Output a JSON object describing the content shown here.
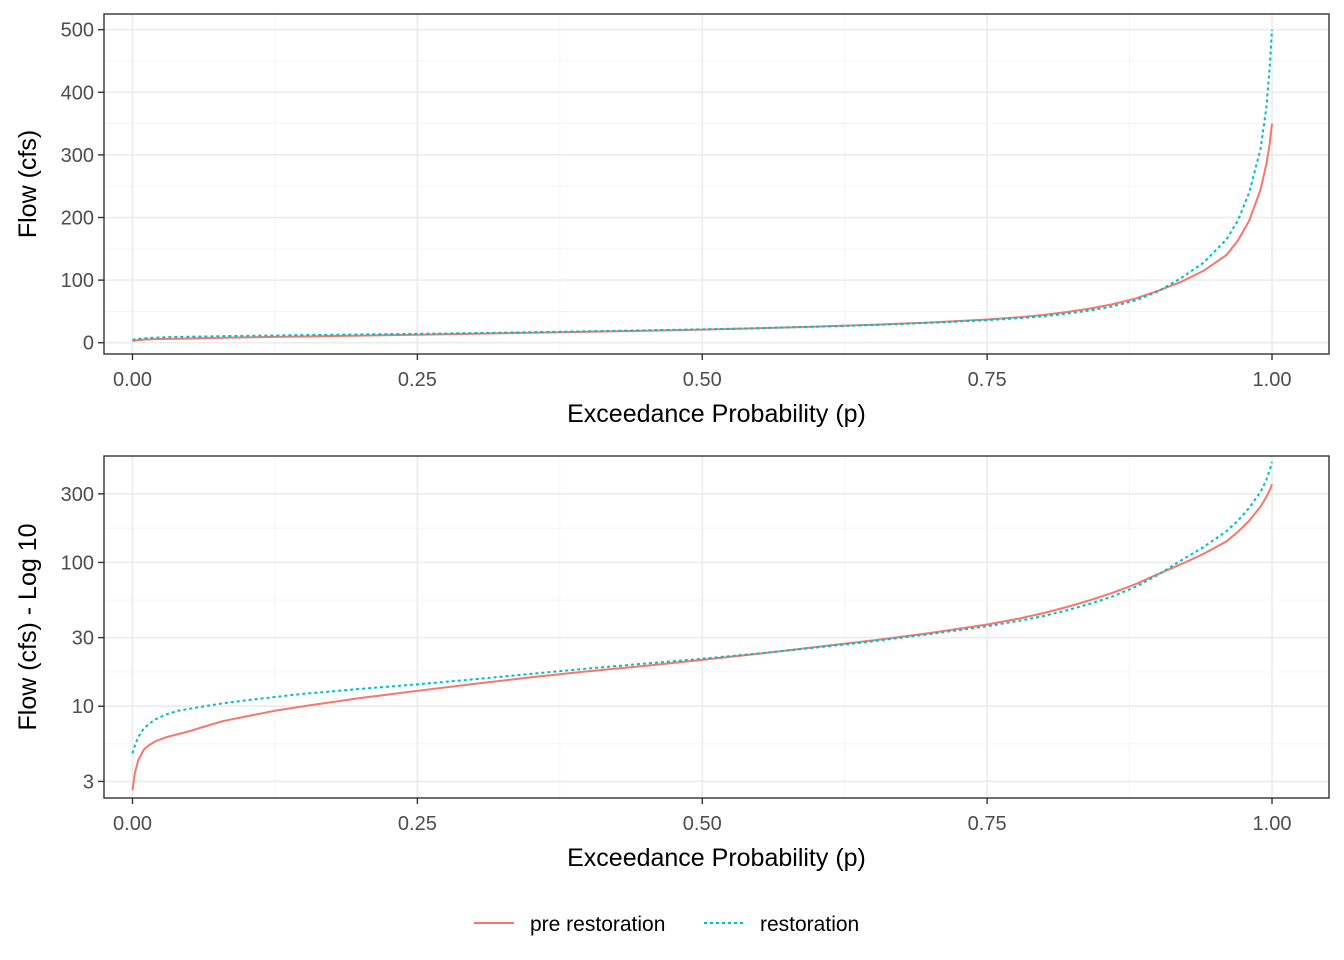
{
  "chart_data": [
    {
      "type": "line",
      "xlabel": "Exceedance Probability (p)",
      "ylabel": "Flow (cfs)",
      "xlim": [
        -0.025,
        1.05
      ],
      "ylim": [
        -18,
        525
      ],
      "yscale": "linear",
      "xticks": [
        0,
        0.25,
        0.5,
        0.75,
        1.0
      ],
      "xtick_labels": [
        "0.00",
        "0.25",
        "0.50",
        "0.75",
        "1.00"
      ],
      "yticks": [
        0,
        100,
        200,
        300,
        400,
        500
      ],
      "ytick_labels": [
        "0",
        "100",
        "200",
        "300",
        "400",
        "500"
      ],
      "y_minor": [
        50,
        150,
        250,
        350,
        450
      ],
      "grid": true,
      "series": [
        {
          "name": "pre restoration",
          "color": "#F8766D",
          "dash": "solid",
          "x": [
            0,
            0.002,
            0.005,
            0.01,
            0.015,
            0.02,
            0.03,
            0.04,
            0.05,
            0.06,
            0.08,
            0.1,
            0.125,
            0.15,
            0.2,
            0.25,
            0.3,
            0.35,
            0.4,
            0.45,
            0.5,
            0.55,
            0.6,
            0.65,
            0.7,
            0.75,
            0.78,
            0.8,
            0.82,
            0.84,
            0.86,
            0.88,
            0.9,
            0.92,
            0.94,
            0.96,
            0.97,
            0.98,
            0.99,
            0.995,
            0.998,
            1.0
          ],
          "y": [
            2.6,
            3.4,
            4.2,
            5.0,
            5.4,
            5.7,
            6.1,
            6.4,
            6.7,
            7.1,
            7.9,
            8.5,
            9.3,
            10.0,
            11.4,
            12.8,
            14.3,
            15.9,
            17.5,
            19.1,
            21.0,
            23.2,
            25.8,
            28.7,
            32.3,
            37.0,
            41.0,
            44.5,
            49.0,
            54.5,
            61.5,
            70.5,
            83.0,
            97.0,
            115.0,
            140.0,
            163.0,
            195.0,
            245.0,
            285.0,
            318.0,
            350.0
          ]
        },
        {
          "name": "restoration",
          "color": "#00BFC4",
          "dash": "dotted",
          "x": [
            0,
            0.002,
            0.005,
            0.01,
            0.015,
            0.02,
            0.03,
            0.04,
            0.05,
            0.06,
            0.08,
            0.1,
            0.125,
            0.15,
            0.2,
            0.25,
            0.3,
            0.35,
            0.4,
            0.45,
            0.5,
            0.55,
            0.6,
            0.65,
            0.7,
            0.75,
            0.78,
            0.8,
            0.82,
            0.84,
            0.86,
            0.88,
            0.9,
            0.92,
            0.94,
            0.96,
            0.97,
            0.98,
            0.99,
            0.995,
            0.998,
            1.0
          ],
          "y": [
            4.7,
            5.3,
            6.1,
            7.0,
            7.6,
            8.1,
            8.8,
            9.3,
            9.6,
            9.9,
            10.5,
            11.0,
            11.6,
            12.2,
            13.2,
            14.2,
            15.4,
            16.8,
            18.3,
            19.8,
            21.4,
            23.3,
            25.6,
            28.3,
            31.8,
            36.0,
            39.5,
            42.5,
            46.5,
            51.5,
            58.0,
            67.5,
            82.0,
            103.0,
            128.0,
            165.0,
            195.0,
            240.0,
            310.0,
            375.0,
            440.0,
            500.0
          ]
        }
      ]
    },
    {
      "type": "line",
      "xlabel": "Exceedance Probability (p)",
      "ylabel": "Flow (cfs) - Log 10",
      "xlim": [
        -0.025,
        1.05
      ],
      "ylim": [
        2.3,
        550
      ],
      "yscale": "log10",
      "xticks": [
        0,
        0.25,
        0.5,
        0.75,
        1.0
      ],
      "xtick_labels": [
        "0.00",
        "0.25",
        "0.50",
        "0.75",
        "1.00"
      ],
      "yticks": [
        3,
        10,
        30,
        100,
        300
      ],
      "ytick_labels": [
        "3",
        "10",
        "30",
        "100",
        "300"
      ],
      "y_minor": [
        5.477,
        17.32,
        54.77,
        173.2
      ],
      "grid": true,
      "series": [
        {
          "name": "pre restoration",
          "color": "#F8766D",
          "dash": "solid",
          "x": [
            0,
            0.002,
            0.005,
            0.01,
            0.015,
            0.02,
            0.03,
            0.04,
            0.05,
            0.06,
            0.08,
            0.1,
            0.125,
            0.15,
            0.2,
            0.25,
            0.3,
            0.35,
            0.4,
            0.45,
            0.5,
            0.55,
            0.6,
            0.65,
            0.7,
            0.75,
            0.78,
            0.8,
            0.82,
            0.84,
            0.86,
            0.88,
            0.9,
            0.92,
            0.94,
            0.96,
            0.97,
            0.98,
            0.99,
            0.995,
            0.998,
            1.0
          ],
          "y": [
            2.6,
            3.4,
            4.2,
            5.0,
            5.4,
            5.7,
            6.1,
            6.4,
            6.7,
            7.1,
            7.9,
            8.5,
            9.3,
            10.0,
            11.4,
            12.8,
            14.3,
            15.9,
            17.5,
            19.1,
            21.0,
            23.2,
            25.8,
            28.7,
            32.3,
            37.0,
            41.0,
            44.5,
            49.0,
            54.5,
            61.5,
            70.5,
            83.0,
            97.0,
            115.0,
            140.0,
            163.0,
            195.0,
            245.0,
            285.0,
            318.0,
            350.0
          ]
        },
        {
          "name": "restoration",
          "color": "#00BFC4",
          "dash": "dotted",
          "x": [
            0,
            0.002,
            0.005,
            0.01,
            0.015,
            0.02,
            0.03,
            0.04,
            0.05,
            0.06,
            0.08,
            0.1,
            0.125,
            0.15,
            0.2,
            0.25,
            0.3,
            0.35,
            0.4,
            0.45,
            0.5,
            0.55,
            0.6,
            0.65,
            0.7,
            0.75,
            0.78,
            0.8,
            0.82,
            0.84,
            0.86,
            0.88,
            0.9,
            0.92,
            0.94,
            0.96,
            0.97,
            0.98,
            0.99,
            0.995,
            0.998,
            1.0
          ],
          "y": [
            4.7,
            5.3,
            6.1,
            7.0,
            7.6,
            8.1,
            8.8,
            9.3,
            9.6,
            9.9,
            10.5,
            11.0,
            11.6,
            12.2,
            13.2,
            14.2,
            15.4,
            16.8,
            18.3,
            19.8,
            21.4,
            23.3,
            25.6,
            28.3,
            31.8,
            36.0,
            39.5,
            42.5,
            46.5,
            51.5,
            58.0,
            67.5,
            82.0,
            103.0,
            128.0,
            165.0,
            195.0,
            240.0,
            310.0,
            375.0,
            440.0,
            500.0
          ]
        }
      ]
    }
  ],
  "legend": {
    "position": "bottom",
    "items": [
      {
        "label": "pre restoration",
        "color": "#F8766D",
        "dash": "solid"
      },
      {
        "label": "restoration",
        "color": "#00BFC4",
        "dash": "dotted"
      }
    ]
  }
}
